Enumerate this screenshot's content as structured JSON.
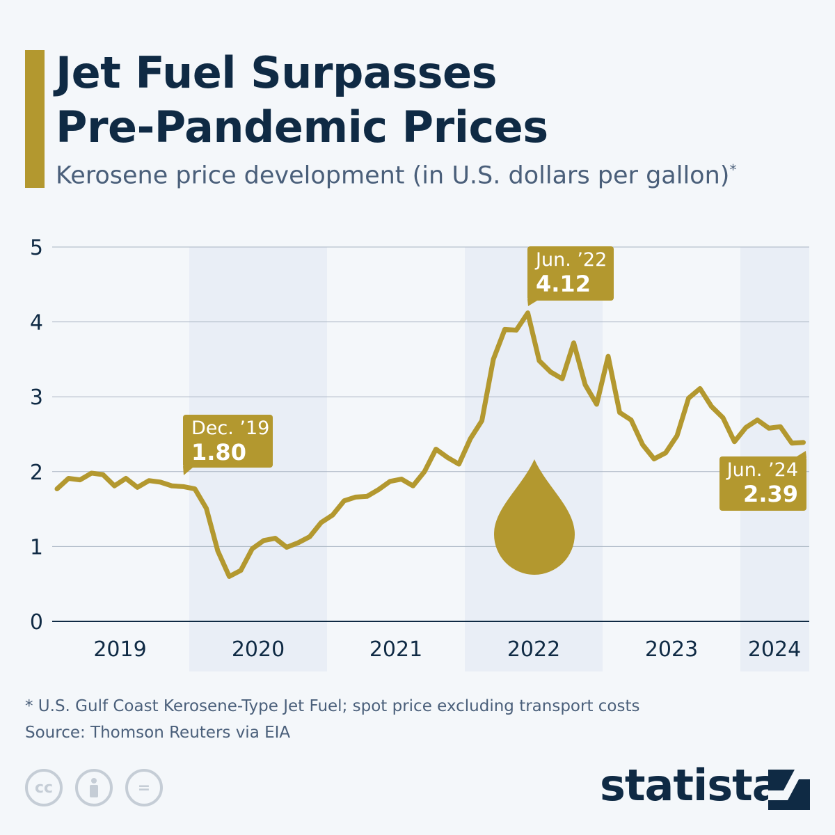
{
  "header": {
    "title_line1": "Jet Fuel Surpasses",
    "title_line2": "Pre-Pandemic Prices",
    "subtitle": "Kerosene price development (in U.S. dollars per gallon)",
    "subtitle_mark": "*"
  },
  "colors": {
    "line": "#b3982f",
    "accent": "#b3982f",
    "band": "#e9eef6",
    "grid": "#a9b4c2",
    "text": "#0f2a44"
  },
  "chart_data": {
    "type": "line",
    "ylim": [
      0,
      5
    ],
    "yticks": [
      "0",
      "1",
      "2",
      "3",
      "4",
      "5"
    ],
    "xticks": [
      "2019",
      "2020",
      "2021",
      "2022",
      "2023",
      "2024"
    ],
    "x_start": "2019-01",
    "x_end": "2024-06",
    "frequency": "monthly",
    "grid": true,
    "series": [
      {
        "values": [
          1.77,
          1.91,
          1.89,
          1.98,
          1.96,
          1.81,
          1.91,
          1.79,
          1.88,
          1.86,
          1.81,
          1.8,
          1.77,
          1.51,
          0.94,
          0.6,
          0.68,
          0.97,
          1.08,
          1.11,
          0.99,
          1.05,
          1.13,
          1.32,
          1.42,
          1.61,
          1.66,
          1.67,
          1.76,
          1.87,
          1.9,
          1.81,
          2.0,
          2.3,
          2.19,
          2.1,
          2.44,
          2.68,
          3.5,
          3.9,
          3.89,
          4.12,
          3.48,
          3.33,
          3.24,
          3.72,
          3.16,
          2.9,
          3.54,
          2.79,
          2.69,
          2.36,
          2.17,
          2.25,
          2.48,
          2.98,
          3.11,
          2.87,
          2.72,
          2.4,
          2.59,
          2.69,
          2.58,
          2.6,
          2.38,
          2.39
        ]
      }
    ],
    "annotations": [
      {
        "label": "Dec. ’19",
        "value": "1.80"
      },
      {
        "label": "Jun. ’22",
        "value": "4.12"
      },
      {
        "label": "Jun. ’24",
        "value": "2.39"
      }
    ]
  },
  "icons": [
    "oil-drop-icon",
    "cc-icon",
    "attribution-icon",
    "no-derivatives-icon",
    "statista-logo-icon"
  ],
  "footer": {
    "note": "* U.S. Gulf Coast Kerosene-Type Jet Fuel; spot price excluding transport costs",
    "source": "Source: Thomson Reuters via EIA",
    "cc": "cc",
    "nd": "=",
    "logo": "statista"
  }
}
